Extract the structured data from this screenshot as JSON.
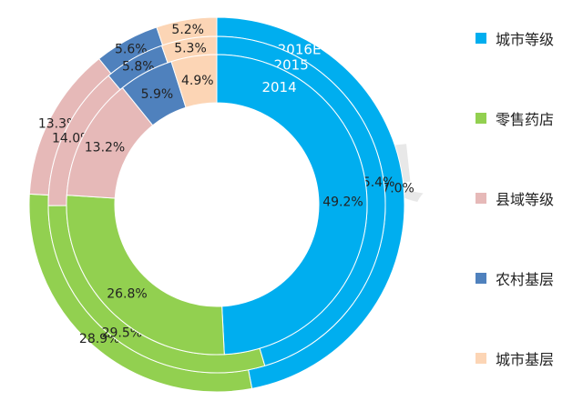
{
  "chart_data": {
    "type": "donut",
    "categories": [
      "城市等级",
      "零售药店",
      "县域等级",
      "农村基层",
      "城市基层"
    ],
    "colors": [
      "#00AEEF",
      "#92D050",
      "#E6B9B8",
      "#4F81BD",
      "#FCD5B5"
    ],
    "series": [
      {
        "name": "2016E",
        "values": [
          47.0,
          28.9,
          13.3,
          5.6,
          5.2
        ],
        "labels": [
          "47.0%",
          "28.9%",
          "13.3%",
          "5.6%",
          "5.2%"
        ]
      },
      {
        "name": "2015",
        "values": [
          45.4,
          29.5,
          14.0,
          5.8,
          5.3
        ],
        "labels": [
          "45.4%",
          "29.5%",
          "14.0%",
          "5.8%",
          "5.3%"
        ]
      },
      {
        "name": "2014",
        "values": [
          49.2,
          26.8,
          13.2,
          5.9,
          4.9
        ],
        "labels": [
          "49.2%",
          "26.8%",
          "13.2%",
          "5.9%",
          "4.9%"
        ]
      }
    ],
    "legend_position": "right"
  },
  "watermark": "新康界"
}
